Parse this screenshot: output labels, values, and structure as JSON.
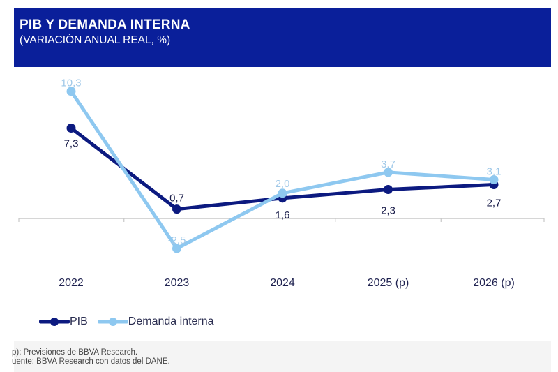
{
  "header": {
    "title": "PIB Y DEMANDA INTERNA",
    "subtitle": "(VARIACIÓN ANUAL REAL, %)"
  },
  "chart_data": {
    "type": "line",
    "title": "PIB Y DEMANDA INTERNA",
    "subtitle": "(VARIACIÓN ANUAL REAL, %)",
    "xlabel": "",
    "ylabel": "",
    "categories": [
      "2022",
      "2023",
      "2024",
      "2025 (p)",
      "2026 (p)"
    ],
    "ylim": [
      -3,
      11
    ],
    "grid": false,
    "legend_position": "bottom-left",
    "series": [
      {
        "name": "PIB",
        "color": "#0c1a80",
        "values": [
          7.3,
          0.7,
          1.6,
          2.3,
          2.7
        ],
        "labels": [
          "7,3",
          "0,7",
          "1,6",
          "2,3",
          "2,7"
        ]
      },
      {
        "name": "Demanda interna",
        "color": "#8ec8f0",
        "values": [
          10.3,
          -2.5,
          2.0,
          3.7,
          3.1
        ],
        "labels": [
          "10,3",
          "-2,5",
          "2,0",
          "3,7",
          "3,1"
        ]
      }
    ]
  },
  "legend": {
    "items": [
      {
        "label": "PIB",
        "color": "#0c1a80"
      },
      {
        "label": "Demanda interna",
        "color": "#8ec8f0"
      }
    ]
  },
  "footer": {
    "notes": [
      "p): Previsiones de BBVA Research.",
      "uente: BBVA Research con datos del DANE."
    ]
  }
}
